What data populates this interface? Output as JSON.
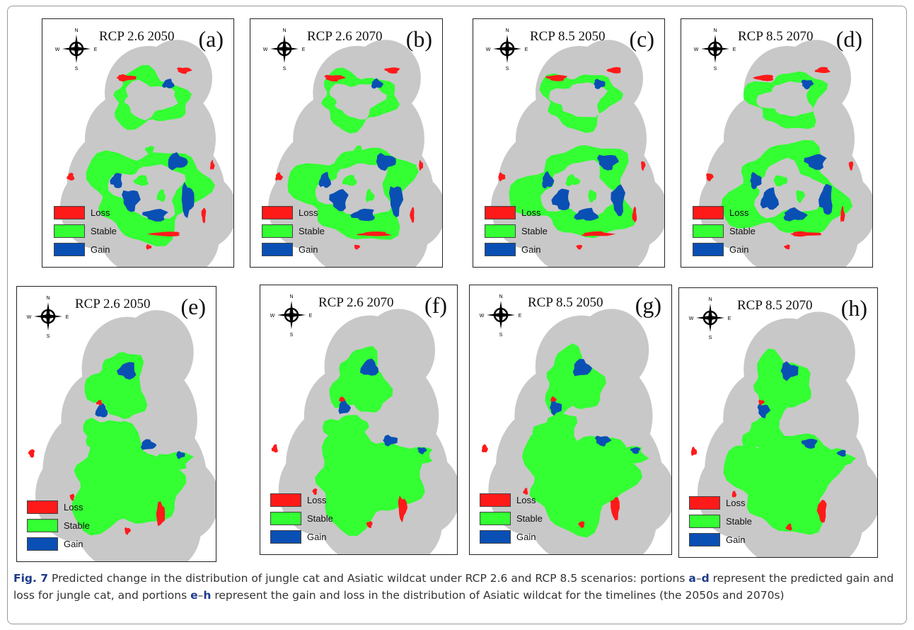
{
  "colors": {
    "loss": "#ff1a1a",
    "stable": "#33ff33",
    "gain": "#0a4fb4",
    "buffer": "#c8c8c8"
  },
  "legend": [
    {
      "key": "loss",
      "label": "Loss"
    },
    {
      "key": "stable",
      "label": "Stable"
    },
    {
      "key": "gain",
      "label": "Gain"
    }
  ],
  "compass": {
    "n": "N",
    "s": "S",
    "e": "E",
    "w": "W",
    "icon": "north-arrow-compass-icon"
  },
  "panels": [
    {
      "id": "a",
      "title": "RCP 2.6 2050",
      "label": "(a)",
      "species": "jungle-cat"
    },
    {
      "id": "b",
      "title": "RCP 2.6 2070",
      "label": "(b)",
      "species": "jungle-cat"
    },
    {
      "id": "c",
      "title": "RCP 8.5 2050",
      "label": "(c)",
      "species": "jungle-cat"
    },
    {
      "id": "d",
      "title": "RCP 8.5 2070",
      "label": "(d)",
      "species": "jungle-cat"
    },
    {
      "id": "e",
      "title": "RCP 2.6 2050",
      "label": "(e)",
      "species": "asiatic-wildcat"
    },
    {
      "id": "f",
      "title": "RCP 2.6 2070",
      "label": "(f)",
      "species": "asiatic-wildcat"
    },
    {
      "id": "g",
      "title": "RCP 8.5 2050",
      "label": "(g)",
      "species": "asiatic-wildcat"
    },
    {
      "id": "h",
      "title": "RCP 8.5 2070",
      "label": "(h)",
      "species": "asiatic-wildcat"
    }
  ],
  "caption": {
    "fig": "Fig. 7",
    "part1": " Predicted change in the distribution of jungle cat and Asiatic wildcat under RCP 2.6 and RCP 8.5 scenarios: portions ",
    "a": "a",
    "dash1": "–",
    "d": "d",
    "part2": " represent the predicted gain and loss for jungle cat, and portions ",
    "e": "e",
    "dash2": "–",
    "h": "h",
    "part3": " represent the gain and loss in the distribution of Asiatic wildcat for the timelines (the 2050s and 2070s)"
  }
}
